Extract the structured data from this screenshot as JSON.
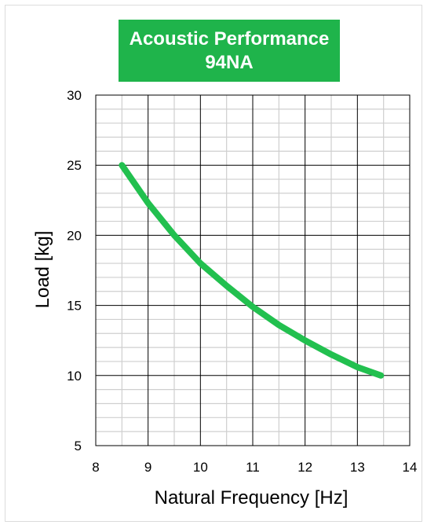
{
  "chart_data": {
    "type": "line",
    "title": "Acoustic Performance",
    "subtitle": "94NA",
    "xlabel": "Natural Frequency [Hz]",
    "ylabel": "Load [kg]",
    "xlim": [
      8,
      14
    ],
    "ylim": [
      5,
      30
    ],
    "x_ticks": [
      "8",
      "9",
      "10",
      "11",
      "12",
      "13",
      "14"
    ],
    "y_ticks": [
      "30",
      "25",
      "20",
      "15",
      "10",
      "5"
    ],
    "grid": true,
    "legend": "none",
    "series": [
      {
        "color": "#22c04f",
        "x": [
          8.5,
          9.0,
          9.5,
          10.0,
          10.5,
          11.0,
          11.5,
          12.0,
          12.5,
          13.0,
          13.45
        ],
        "y": [
          25.0,
          22.3,
          20.0,
          18.0,
          16.4,
          14.9,
          13.6,
          12.5,
          11.5,
          10.6,
          10.0
        ]
      }
    ]
  },
  "colors": {
    "title_background": "#1fb44b",
    "title_text": "#ffffff",
    "curve": "#22c04f",
    "major_grid": "#000000",
    "minor_grid": "#cfcfcf"
  }
}
